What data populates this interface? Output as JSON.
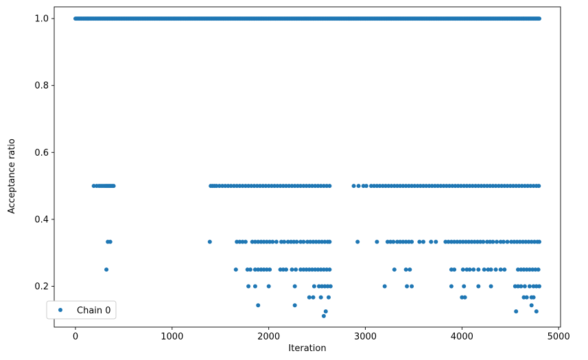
{
  "chart_data": {
    "type": "scatter",
    "title": "",
    "xlabel": "Iteration",
    "ylabel": "Acceptance ratio",
    "xlim": [
      -220,
      5020
    ],
    "ylim": [
      0.078,
      1.035
    ],
    "xticks": [
      0,
      1000,
      2000,
      3000,
      4000,
      5000
    ],
    "yticks": [
      0.2,
      0.4,
      0.6,
      0.8,
      1.0
    ],
    "xtick_labels": [
      "0",
      "1000",
      "2000",
      "3000",
      "4000",
      "5000"
    ],
    "ytick_labels": [
      "0.2",
      "0.4",
      "0.6",
      "0.8",
      "1.0"
    ],
    "grid": false,
    "legend_position": "lower-left",
    "marker_color": "#1f77b4",
    "series": [
      {
        "name": "Chain 0",
        "constant_level": 1.0,
        "constant_range": [
          0,
          4800
        ],
        "points": [
          [
            190,
            0.5
          ],
          [
            220,
            0.5
          ],
          [
            245,
            0.5
          ],
          [
            265,
            0.5
          ],
          [
            285,
            0.5
          ],
          [
            305,
            0.5
          ],
          [
            320,
            0.5
          ],
          [
            335,
            0.5
          ],
          [
            350,
            0.5
          ],
          [
            365,
            0.5
          ],
          [
            380,
            0.5
          ],
          [
            395,
            0.5
          ],
          [
            1400,
            0.5
          ],
          [
            1420,
            0.5
          ],
          [
            1440,
            0.5
          ],
          [
            1460,
            0.5
          ],
          [
            1490,
            0.5
          ],
          [
            1520,
            0.5
          ],
          [
            1550,
            0.5
          ],
          [
            1580,
            0.5
          ],
          [
            1610,
            0.5
          ],
          [
            1640,
            0.5
          ],
          [
            1670,
            0.5
          ],
          [
            1700,
            0.5
          ],
          [
            1730,
            0.5
          ],
          [
            1760,
            0.5
          ],
          [
            1790,
            0.5
          ],
          [
            1820,
            0.5
          ],
          [
            1850,
            0.5
          ],
          [
            1880,
            0.5
          ],
          [
            1910,
            0.5
          ],
          [
            1940,
            0.5
          ],
          [
            1970,
            0.5
          ],
          [
            2000,
            0.5
          ],
          [
            2030,
            0.5
          ],
          [
            2060,
            0.5
          ],
          [
            2090,
            0.5
          ],
          [
            2120,
            0.5
          ],
          [
            2150,
            0.5
          ],
          [
            2180,
            0.5
          ],
          [
            2210,
            0.5
          ],
          [
            2240,
            0.5
          ],
          [
            2270,
            0.5
          ],
          [
            2300,
            0.5
          ],
          [
            2330,
            0.5
          ],
          [
            2360,
            0.5
          ],
          [
            2390,
            0.5
          ],
          [
            2420,
            0.5
          ],
          [
            2450,
            0.5
          ],
          [
            2480,
            0.5
          ],
          [
            2510,
            0.5
          ],
          [
            2540,
            0.5
          ],
          [
            2570,
            0.5
          ],
          [
            2600,
            0.5
          ],
          [
            2630,
            0.5
          ],
          [
            2880,
            0.5
          ],
          [
            2930,
            0.5
          ],
          [
            2980,
            0.5
          ],
          [
            3010,
            0.5
          ],
          [
            3060,
            0.5
          ],
          [
            3090,
            0.5
          ],
          [
            3120,
            0.5
          ],
          [
            3150,
            0.5
          ],
          [
            3180,
            0.5
          ],
          [
            3210,
            0.5
          ],
          [
            3240,
            0.5
          ],
          [
            3270,
            0.5
          ],
          [
            3300,
            0.5
          ],
          [
            3330,
            0.5
          ],
          [
            3360,
            0.5
          ],
          [
            3390,
            0.5
          ],
          [
            3420,
            0.5
          ],
          [
            3450,
            0.5
          ],
          [
            3480,
            0.5
          ],
          [
            3510,
            0.5
          ],
          [
            3540,
            0.5
          ],
          [
            3570,
            0.5
          ],
          [
            3600,
            0.5
          ],
          [
            3630,
            0.5
          ],
          [
            3660,
            0.5
          ],
          [
            3690,
            0.5
          ],
          [
            3720,
            0.5
          ],
          [
            3750,
            0.5
          ],
          [
            3780,
            0.5
          ],
          [
            3810,
            0.5
          ],
          [
            3840,
            0.5
          ],
          [
            3870,
            0.5
          ],
          [
            3900,
            0.5
          ],
          [
            3930,
            0.5
          ],
          [
            3960,
            0.5
          ],
          [
            3990,
            0.5
          ],
          [
            4020,
            0.5
          ],
          [
            4050,
            0.5
          ],
          [
            4080,
            0.5
          ],
          [
            4110,
            0.5
          ],
          [
            4140,
            0.5
          ],
          [
            4170,
            0.5
          ],
          [
            4200,
            0.5
          ],
          [
            4230,
            0.5
          ],
          [
            4260,
            0.5
          ],
          [
            4290,
            0.5
          ],
          [
            4320,
            0.5
          ],
          [
            4350,
            0.5
          ],
          [
            4380,
            0.5
          ],
          [
            4410,
            0.5
          ],
          [
            4440,
            0.5
          ],
          [
            4470,
            0.5
          ],
          [
            4500,
            0.5
          ],
          [
            4530,
            0.5
          ],
          [
            4560,
            0.5
          ],
          [
            4590,
            0.5
          ],
          [
            4620,
            0.5
          ],
          [
            4650,
            0.5
          ],
          [
            4680,
            0.5
          ],
          [
            4710,
            0.5
          ],
          [
            4740,
            0.5
          ],
          [
            4770,
            0.5
          ],
          [
            4795,
            0.5
          ],
          [
            335,
            0.333
          ],
          [
            360,
            0.333
          ],
          [
            1390,
            0.333
          ],
          [
            1670,
            0.333
          ],
          [
            1700,
            0.333
          ],
          [
            1730,
            0.333
          ],
          [
            1760,
            0.333
          ],
          [
            1830,
            0.333
          ],
          [
            1860,
            0.333
          ],
          [
            1890,
            0.333
          ],
          [
            1920,
            0.333
          ],
          [
            1950,
            0.333
          ],
          [
            1980,
            0.333
          ],
          [
            2010,
            0.333
          ],
          [
            2040,
            0.333
          ],
          [
            2080,
            0.333
          ],
          [
            2130,
            0.333
          ],
          [
            2160,
            0.333
          ],
          [
            2200,
            0.333
          ],
          [
            2230,
            0.333
          ],
          [
            2260,
            0.333
          ],
          [
            2290,
            0.333
          ],
          [
            2330,
            0.333
          ],
          [
            2360,
            0.333
          ],
          [
            2400,
            0.333
          ],
          [
            2430,
            0.333
          ],
          [
            2460,
            0.333
          ],
          [
            2490,
            0.333
          ],
          [
            2520,
            0.333
          ],
          [
            2550,
            0.333
          ],
          [
            2580,
            0.333
          ],
          [
            2610,
            0.333
          ],
          [
            2630,
            0.333
          ],
          [
            2920,
            0.333
          ],
          [
            3120,
            0.333
          ],
          [
            3230,
            0.333
          ],
          [
            3260,
            0.333
          ],
          [
            3290,
            0.333
          ],
          [
            3330,
            0.333
          ],
          [
            3360,
            0.333
          ],
          [
            3390,
            0.333
          ],
          [
            3420,
            0.333
          ],
          [
            3450,
            0.333
          ],
          [
            3480,
            0.333
          ],
          [
            3560,
            0.333
          ],
          [
            3600,
            0.333
          ],
          [
            3680,
            0.333
          ],
          [
            3730,
            0.333
          ],
          [
            3830,
            0.333
          ],
          [
            3860,
            0.333
          ],
          [
            3890,
            0.333
          ],
          [
            3920,
            0.333
          ],
          [
            3950,
            0.333
          ],
          [
            3980,
            0.333
          ],
          [
            4010,
            0.333
          ],
          [
            4040,
            0.333
          ],
          [
            4070,
            0.333
          ],
          [
            4100,
            0.333
          ],
          [
            4130,
            0.333
          ],
          [
            4160,
            0.333
          ],
          [
            4190,
            0.333
          ],
          [
            4220,
            0.333
          ],
          [
            4260,
            0.333
          ],
          [
            4290,
            0.333
          ],
          [
            4320,
            0.333
          ],
          [
            4360,
            0.333
          ],
          [
            4400,
            0.333
          ],
          [
            4430,
            0.333
          ],
          [
            4470,
            0.333
          ],
          [
            4510,
            0.333
          ],
          [
            4540,
            0.333
          ],
          [
            4570,
            0.333
          ],
          [
            4600,
            0.333
          ],
          [
            4630,
            0.333
          ],
          [
            4660,
            0.333
          ],
          [
            4690,
            0.333
          ],
          [
            4720,
            0.333
          ],
          [
            4750,
            0.333
          ],
          [
            4780,
            0.333
          ],
          [
            4800,
            0.333
          ],
          [
            320,
            0.25
          ],
          [
            1660,
            0.25
          ],
          [
            1780,
            0.25
          ],
          [
            1810,
            0.25
          ],
          [
            1860,
            0.25
          ],
          [
            1890,
            0.25
          ],
          [
            1920,
            0.25
          ],
          [
            1950,
            0.25
          ],
          [
            1980,
            0.25
          ],
          [
            2010,
            0.25
          ],
          [
            2120,
            0.25
          ],
          [
            2150,
            0.25
          ],
          [
            2180,
            0.25
          ],
          [
            2240,
            0.25
          ],
          [
            2280,
            0.25
          ],
          [
            2330,
            0.25
          ],
          [
            2360,
            0.25
          ],
          [
            2390,
            0.25
          ],
          [
            2420,
            0.25
          ],
          [
            2450,
            0.25
          ],
          [
            2480,
            0.25
          ],
          [
            2510,
            0.25
          ],
          [
            2540,
            0.25
          ],
          [
            2570,
            0.25
          ],
          [
            2600,
            0.25
          ],
          [
            2630,
            0.25
          ],
          [
            3300,
            0.25
          ],
          [
            3420,
            0.25
          ],
          [
            3460,
            0.25
          ],
          [
            3890,
            0.25
          ],
          [
            3920,
            0.25
          ],
          [
            4010,
            0.25
          ],
          [
            4050,
            0.25
          ],
          [
            4080,
            0.25
          ],
          [
            4120,
            0.25
          ],
          [
            4170,
            0.25
          ],
          [
            4230,
            0.25
          ],
          [
            4270,
            0.25
          ],
          [
            4300,
            0.25
          ],
          [
            4350,
            0.25
          ],
          [
            4400,
            0.25
          ],
          [
            4440,
            0.25
          ],
          [
            4580,
            0.25
          ],
          [
            4610,
            0.25
          ],
          [
            4640,
            0.25
          ],
          [
            4670,
            0.25
          ],
          [
            4700,
            0.25
          ],
          [
            4730,
            0.25
          ],
          [
            4760,
            0.25
          ],
          [
            4790,
            0.25
          ],
          [
            1790,
            0.2
          ],
          [
            1860,
            0.2
          ],
          [
            2000,
            0.2
          ],
          [
            2270,
            0.2
          ],
          [
            2470,
            0.2
          ],
          [
            2520,
            0.2
          ],
          [
            2550,
            0.2
          ],
          [
            2580,
            0.2
          ],
          [
            2610,
            0.2
          ],
          [
            2640,
            0.2
          ],
          [
            3200,
            0.2
          ],
          [
            3430,
            0.2
          ],
          [
            3480,
            0.2
          ],
          [
            3890,
            0.2
          ],
          [
            4020,
            0.2
          ],
          [
            4170,
            0.2
          ],
          [
            4300,
            0.2
          ],
          [
            4550,
            0.2
          ],
          [
            4580,
            0.2
          ],
          [
            4610,
            0.2
          ],
          [
            4650,
            0.2
          ],
          [
            4700,
            0.2
          ],
          [
            4740,
            0.2
          ],
          [
            4770,
            0.2
          ],
          [
            4800,
            0.2
          ],
          [
            2420,
            0.167
          ],
          [
            2460,
            0.167
          ],
          [
            2540,
            0.167
          ],
          [
            2620,
            0.167
          ],
          [
            4000,
            0.167
          ],
          [
            4030,
            0.167
          ],
          [
            4640,
            0.167
          ],
          [
            4670,
            0.167
          ],
          [
            4720,
            0.167
          ],
          [
            4740,
            0.167
          ],
          [
            1890,
            0.143
          ],
          [
            2270,
            0.143
          ],
          [
            4720,
            0.143
          ],
          [
            2590,
            0.125
          ],
          [
            4560,
            0.125
          ],
          [
            4770,
            0.125
          ],
          [
            2570,
            0.111
          ]
        ]
      }
    ]
  }
}
